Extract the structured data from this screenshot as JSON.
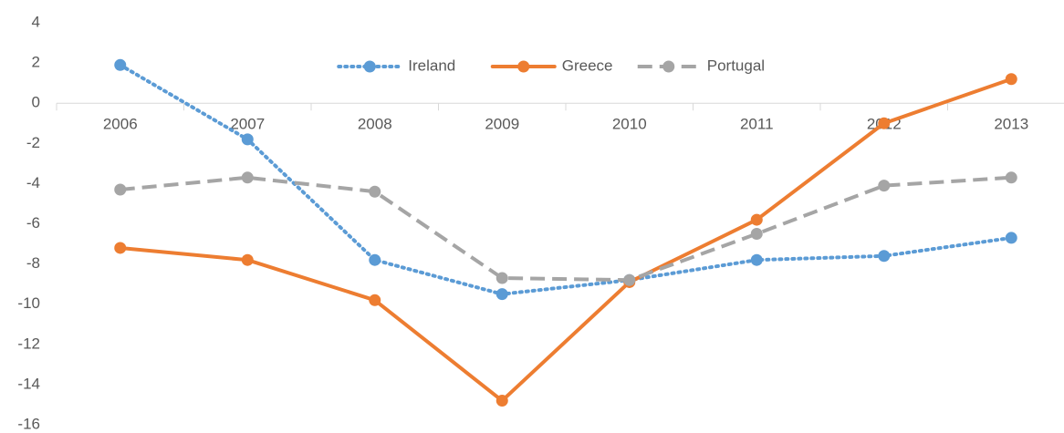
{
  "chart_data": {
    "type": "line",
    "categories": [
      "2006",
      "2007",
      "2008",
      "2009",
      "2010",
      "2011",
      "2012",
      "2013"
    ],
    "series": [
      {
        "name": "Ireland",
        "color": "#5b9bd5",
        "line_style": "dotted",
        "values": [
          1.9,
          -1.8,
          -7.8,
          -9.5,
          -8.8,
          -7.8,
          -7.6,
          -6.7
        ]
      },
      {
        "name": "Greece",
        "color": "#ed7d31",
        "line_style": "solid",
        "values": [
          -7.2,
          -7.8,
          -9.8,
          -14.8,
          -8.9,
          -5.8,
          -1.0,
          1.2
        ]
      },
      {
        "name": "Portugal",
        "color": "#a5a5a5",
        "line_style": "dashed",
        "values": [
          -4.3,
          -3.7,
          -4.4,
          -8.7,
          -8.8,
          -6.5,
          -4.1,
          -3.7
        ]
      }
    ],
    "ylim": [
      -16,
      4
    ],
    "yticks": [
      -16,
      -14,
      -12,
      -10,
      -8,
      -6,
      -4,
      -2,
      0,
      2,
      4
    ],
    "grid": false,
    "legend": "top"
  }
}
